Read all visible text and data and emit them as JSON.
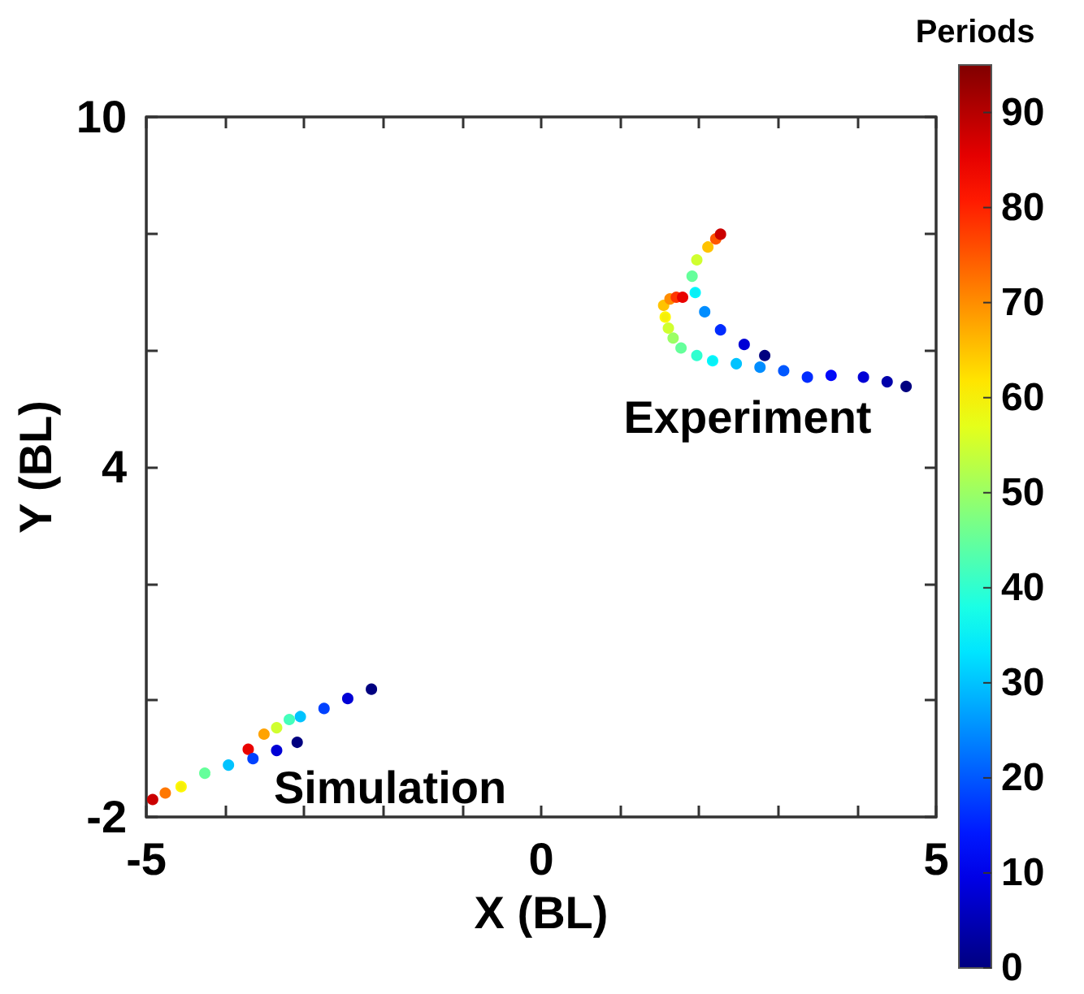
{
  "chart_data": {
    "type": "scatter",
    "xlabel": "X (BL)",
    "ylabel": "Y (BL)",
    "clabel": "Periods",
    "xlim": [
      -5,
      5
    ],
    "xticks": [
      -5,
      {
        "value": -4,
        "label": null
      },
      {
        "value": -3,
        "label": null
      },
      {
        "value": -2,
        "label": null
      },
      {
        "value": -1,
        "label": null
      },
      0,
      {
        "value": 1,
        "label": null
      },
      {
        "value": 2,
        "label": null
      },
      {
        "value": 3,
        "label": null
      },
      {
        "value": 4,
        "label": null
      },
      5
    ],
    "ylim": [
      -2,
      10
    ],
    "yticks": [
      -2,
      {
        "value": 0,
        "label": null
      },
      {
        "value": 2,
        "label": null
      },
      4,
      {
        "value": 6,
        "label": null
      },
      {
        "value": 8,
        "label": null
      },
      10
    ],
    "clim": [
      0,
      95
    ],
    "cticks": [
      0,
      10,
      20,
      30,
      40,
      50,
      60,
      70,
      80,
      90
    ],
    "marker": "circle",
    "series": [
      {
        "x": [
          4.62,
          4.38,
          4.08,
          3.67,
          3.37,
          3.07,
          2.77,
          2.47,
          2.17,
          1.97,
          1.77,
          1.67,
          1.61,
          1.57,
          1.55,
          1.63,
          1.71,
          1.79
        ],
        "values": [
          5.38,
          5.46,
          5.54,
          5.57,
          5.54,
          5.65,
          5.71,
          5.77,
          5.82,
          5.91,
          6.04,
          6.21,
          6.38,
          6.57,
          6.77,
          6.88,
          6.91,
          6.91
        ],
        "cvalues": [
          0,
          4,
          8,
          12,
          16,
          20,
          25,
          30,
          35,
          40,
          45,
          50,
          55,
          60,
          65,
          70,
          78,
          85
        ],
        "colors": [
          "#000080",
          "#0000aa",
          "#0000d5",
          "#0001ff",
          "#002cff",
          "#0057ff",
          "#008dff",
          "#00c3ff",
          "#00f8ff",
          "#2fffd0",
          "#65ff9a",
          "#9aff65",
          "#d0ff2f",
          "#fff800",
          "#ffc300",
          "#ff8d00",
          "#ff3700",
          "#eb0000"
        ]
      },
      {
        "x": [
          2.83,
          2.57,
          2.27,
          2.07,
          1.95,
          1.91,
          1.97,
          2.11,
          2.21,
          2.27
        ],
        "values": [
          5.91,
          6.1,
          6.35,
          6.66,
          6.99,
          7.27,
          7.55,
          7.77,
          7.91,
          7.99
        ],
        "cvalues": [
          0,
          8,
          16,
          25,
          35,
          45,
          55,
          65,
          75,
          88
        ],
        "colors": [
          "#000080",
          "#0000d5",
          "#002cff",
          "#008dff",
          "#00f8ff",
          "#65ff9a",
          "#d0ff2f",
          "#ffc300",
          "#ff5700",
          "#cb0000"
        ]
      },
      {
        "x": [
          -2.15,
          -2.45,
          -2.75,
          -3.05,
          -3.19,
          -3.35,
          -3.51,
          -3.71
        ],
        "values": [
          0.19,
          0.03,
          -0.14,
          -0.28,
          -0.33,
          -0.47,
          -0.58,
          -0.84
        ],
        "cvalues": [
          0,
          8,
          18,
          30,
          42,
          55,
          68,
          85
        ],
        "colors": [
          "#000080",
          "#0000d5",
          "#0042ff",
          "#00c3ff",
          "#44ffbb",
          "#d0ff2f",
          "#ffa200",
          "#eb0000"
        ]
      },
      {
        "x": [
          -3.09,
          -3.35,
          -3.65,
          -3.96,
          -4.26,
          -4.56,
          -4.76,
          -4.92
        ],
        "values": [
          -0.72,
          -0.86,
          -1.0,
          -1.11,
          -1.25,
          -1.48,
          -1.59,
          -1.7
        ],
        "cvalues": [
          0,
          8,
          18,
          30,
          45,
          60,
          72,
          88
        ],
        "colors": [
          "#000080",
          "#0000d5",
          "#0042ff",
          "#00c3ff",
          "#65ff9a",
          "#fff800",
          "#ff7700",
          "#cb0000"
        ]
      }
    ],
    "annotations": [
      "Experiment",
      "Simulation"
    ]
  }
}
